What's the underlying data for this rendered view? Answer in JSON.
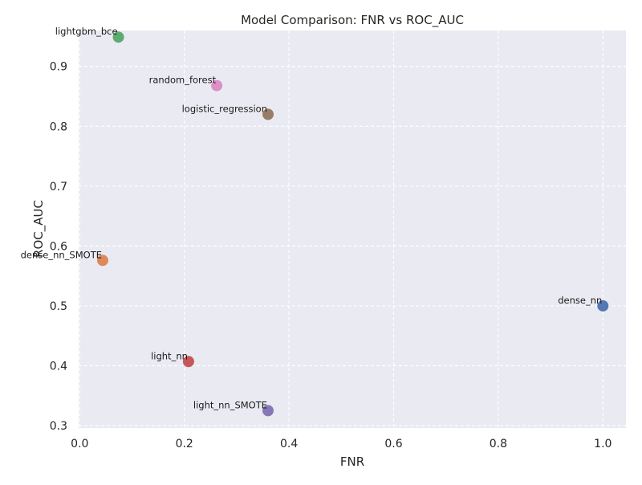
{
  "chart_data": {
    "type": "scatter",
    "title": "Model Comparison: FNR vs ROC_AUC",
    "xlabel": "FNR",
    "ylabel": "ROC_AUC",
    "xlim": [
      -0.002,
      1.044
    ],
    "ylim": [
      0.296,
      0.96
    ],
    "x_ticks": [
      0.0,
      0.2,
      0.4,
      0.6,
      0.8,
      1.0
    ],
    "y_ticks": [
      0.3,
      0.4,
      0.5,
      0.6,
      0.7,
      0.8,
      0.9
    ],
    "x_tick_labels": [
      "0.0",
      "0.2",
      "0.4",
      "0.6",
      "0.8",
      "1.0"
    ],
    "y_tick_labels": [
      "0.3",
      "0.4",
      "0.5",
      "0.6",
      "0.7",
      "0.8",
      "0.9"
    ],
    "grid": true,
    "grid_style": "dashed",
    "background_color": "#eaeaf2",
    "points": [
      {
        "label": "dense_nn",
        "x": 1.0,
        "y": 0.5,
        "color": "#4c72b0"
      },
      {
        "label": "dense_nn_SMOTE",
        "x": 0.044,
        "y": 0.576,
        "color": "#dd8452"
      },
      {
        "label": "lightgbm_bce",
        "x": 0.074,
        "y": 0.949,
        "color": "#55a868"
      },
      {
        "label": "light_nn",
        "x": 0.208,
        "y": 0.407,
        "color": "#c44e52"
      },
      {
        "label": "light_nn_SMOTE",
        "x": 0.36,
        "y": 0.325,
        "color": "#8172b3"
      },
      {
        "label": "logistic_regression",
        "x": 0.36,
        "y": 0.82,
        "color": "#937860"
      },
      {
        "label": "random_forest",
        "x": 0.262,
        "y": 0.868,
        "color": "#da8bc3"
      }
    ]
  }
}
